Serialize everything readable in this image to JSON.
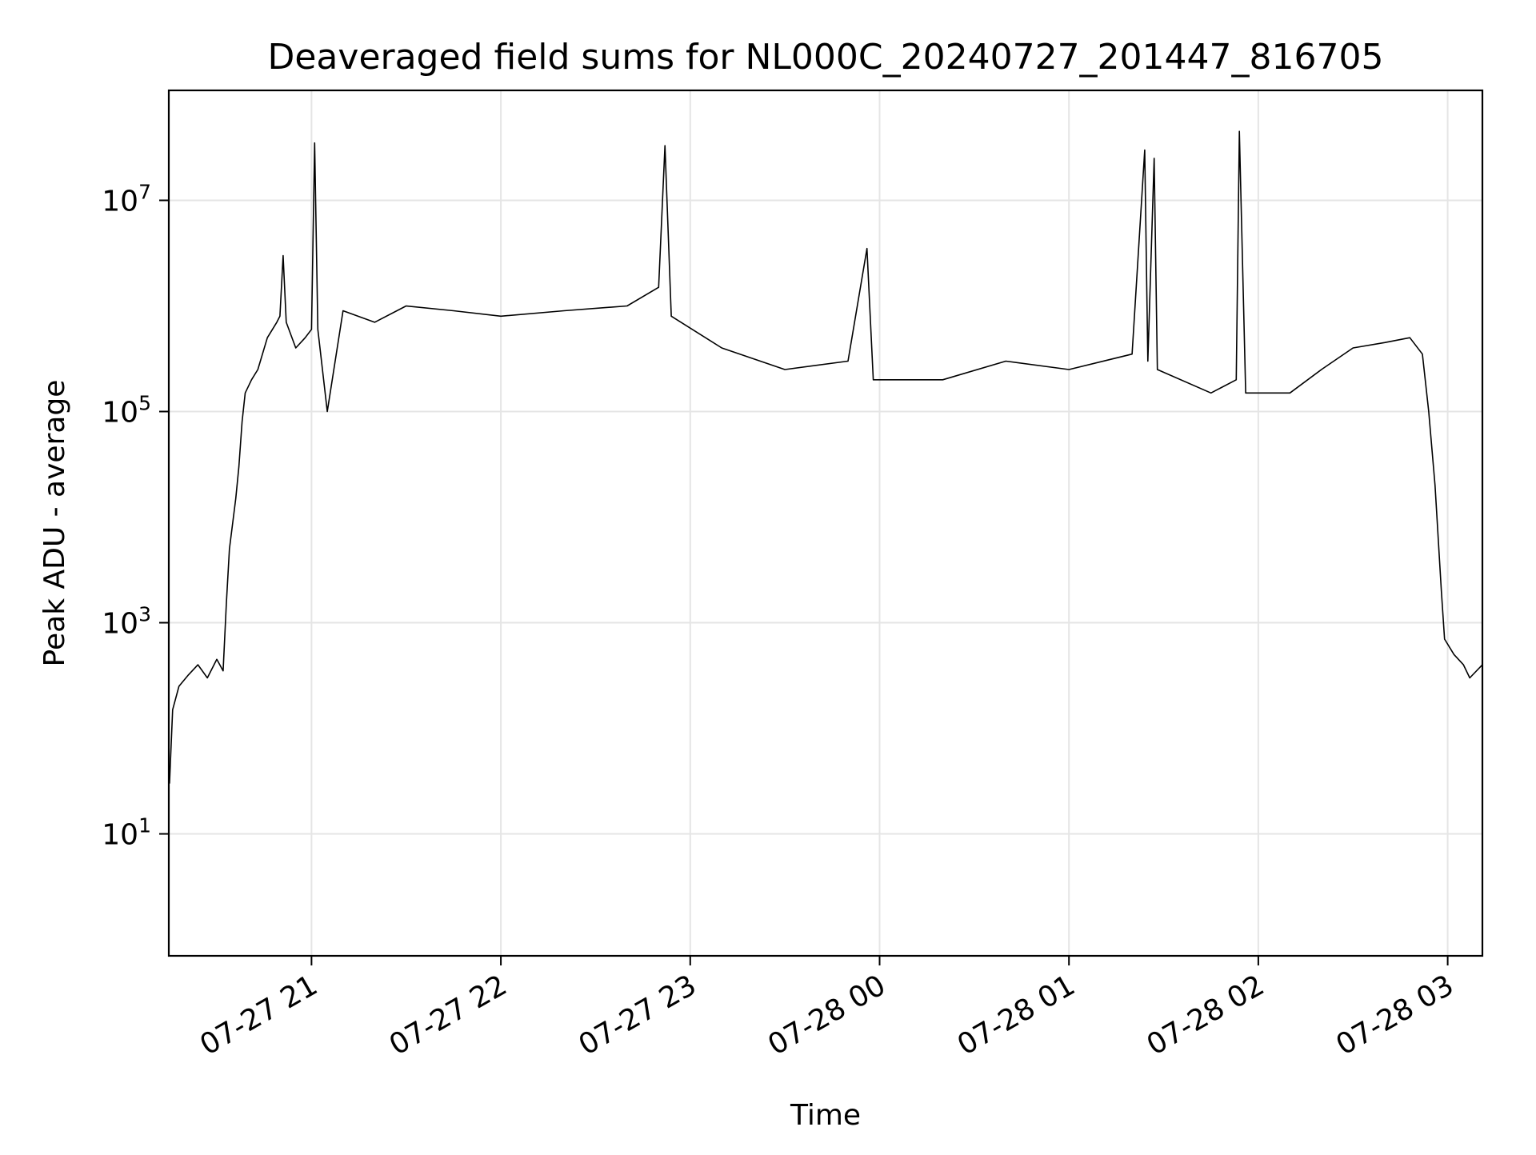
{
  "chart_data": {
    "type": "line",
    "title": "Deaveraged field sums for NL000C_20240727_201447_816705",
    "xlabel": "Time",
    "ylabel": "Peak ADU - average",
    "yscale": "log",
    "xlim": [
      "2024-07-27 20:14:47",
      "2024-07-28 03:11:00"
    ],
    "ylim": [
      0.7,
      110000000
    ],
    "grid": true,
    "line_color": "#000000",
    "grid_color": "#e5e5e5",
    "x_ticks": [
      {
        "value": "2024-07-27 21:00",
        "label": "07-27 21"
      },
      {
        "value": "2024-07-27 22:00",
        "label": "07-27 22"
      },
      {
        "value": "2024-07-27 23:00",
        "label": "07-27 23"
      },
      {
        "value": "2024-07-28 00:00",
        "label": "07-28 00"
      },
      {
        "value": "2024-07-28 01:00",
        "label": "07-28 01"
      },
      {
        "value": "2024-07-28 02:00",
        "label": "07-28 02"
      },
      {
        "value": "2024-07-28 03:00",
        "label": "07-28 03"
      }
    ],
    "y_ticks": [
      {
        "value": 10,
        "base": "10",
        "exp": "1"
      },
      {
        "value": 1000,
        "base": "10",
        "exp": "3"
      },
      {
        "value": 100000,
        "base": "10",
        "exp": "5"
      },
      {
        "value": 10000000,
        "base": "10",
        "exp": "7"
      }
    ],
    "series": [
      {
        "points": [
          [
            "2024-07-27 20:15",
            30
          ],
          [
            "2024-07-27 20:16",
            150
          ],
          [
            "2024-07-27 20:18",
            250
          ],
          [
            "2024-07-27 20:21",
            320
          ],
          [
            "2024-07-27 20:24",
            400
          ],
          [
            "2024-07-27 20:27",
            300
          ],
          [
            "2024-07-27 20:30",
            450
          ],
          [
            "2024-07-27 20:32",
            350
          ],
          [
            "2024-07-27 20:33",
            1500
          ],
          [
            "2024-07-27 20:34",
            5000
          ],
          [
            "2024-07-27 20:36",
            15000
          ],
          [
            "2024-07-27 20:37",
            30000
          ],
          [
            "2024-07-27 20:38",
            80000
          ],
          [
            "2024-07-27 20:39",
            150000
          ],
          [
            "2024-07-27 20:41",
            200000
          ],
          [
            "2024-07-27 20:43",
            250000
          ],
          [
            "2024-07-27 20:46",
            500000
          ],
          [
            "2024-07-27 20:49",
            700000
          ],
          [
            "2024-07-27 20:50",
            800000
          ],
          [
            "2024-07-27 20:51",
            3000000
          ],
          [
            "2024-07-27 20:52",
            700000
          ],
          [
            "2024-07-27 20:55",
            400000
          ],
          [
            "2024-07-27 20:58",
            500000
          ],
          [
            "2024-07-27 21:00",
            600000
          ],
          [
            "2024-07-27 21:01",
            35000000
          ],
          [
            "2024-07-27 21:02",
            600000
          ],
          [
            "2024-07-27 21:05",
            100000
          ],
          [
            "2024-07-27 21:10",
            900000
          ],
          [
            "2024-07-27 21:20",
            700000
          ],
          [
            "2024-07-27 21:30",
            1000000
          ],
          [
            "2024-07-27 21:45",
            900000
          ],
          [
            "2024-07-27 22:00",
            800000
          ],
          [
            "2024-07-27 22:20",
            900000
          ],
          [
            "2024-07-27 22:40",
            1000000
          ],
          [
            "2024-07-27 22:50",
            1500000
          ],
          [
            "2024-07-27 22:52",
            33000000
          ],
          [
            "2024-07-27 22:54",
            800000
          ],
          [
            "2024-07-27 23:10",
            400000
          ],
          [
            "2024-07-27 23:30",
            250000
          ],
          [
            "2024-07-27 23:50",
            300000
          ],
          [
            "2024-07-27 23:56",
            3500000
          ],
          [
            "2024-07-27 23:58",
            200000
          ],
          [
            "2024-07-28 00:20",
            200000
          ],
          [
            "2024-07-28 00:40",
            300000
          ],
          [
            "2024-07-28 01:00",
            250000
          ],
          [
            "2024-07-28 01:20",
            350000
          ],
          [
            "2024-07-28 01:24",
            30000000
          ],
          [
            "2024-07-28 01:25",
            300000
          ],
          [
            "2024-07-28 01:27",
            25000000
          ],
          [
            "2024-07-28 01:28",
            250000
          ],
          [
            "2024-07-28 01:45",
            150000
          ],
          [
            "2024-07-28 01:53",
            200000
          ],
          [
            "2024-07-28 01:54",
            45000000
          ],
          [
            "2024-07-28 01:56",
            150000
          ],
          [
            "2024-07-28 02:10",
            150000
          ],
          [
            "2024-07-28 02:20",
            250000
          ],
          [
            "2024-07-28 02:30",
            400000
          ],
          [
            "2024-07-28 02:40",
            450000
          ],
          [
            "2024-07-28 02:48",
            500000
          ],
          [
            "2024-07-28 02:52",
            350000
          ],
          [
            "2024-07-28 02:54",
            100000
          ],
          [
            "2024-07-28 02:56",
            20000
          ],
          [
            "2024-07-28 02:58",
            2000
          ],
          [
            "2024-07-28 02:59",
            700
          ],
          [
            "2024-07-28 03:02",
            500
          ],
          [
            "2024-07-28 03:05",
            400
          ],
          [
            "2024-07-28 03:07",
            300
          ],
          [
            "2024-07-28 03:11",
            400
          ]
        ]
      }
    ]
  }
}
